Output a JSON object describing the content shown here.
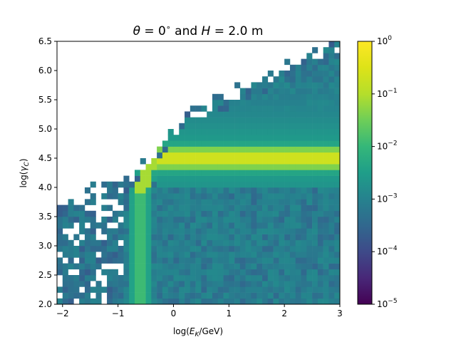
{
  "chart_data": {
    "type": "heatmap",
    "title": "θ = 0° and H = 2.0 m",
    "title_parts": {
      "theta": "θ",
      "eq1": " = 0",
      "deg": "∘",
      "and": " and ",
      "H": "H",
      "eq2": " = 2.0 m"
    },
    "xlabel": "log(E_K/GeV)",
    "xlabel_parts": {
      "pre": "log(",
      "E": "E",
      "sub": "K",
      "post": "/GeV)"
    },
    "ylabel": "log(γ_C)",
    "ylabel_parts": {
      "pre": "log(",
      "g": "γ",
      "sub": "C",
      "post": ")"
    },
    "xlim": [
      -2.1,
      3.0
    ],
    "ylim": [
      2.0,
      6.5
    ],
    "x_ticks": [
      -2,
      -1,
      0,
      1,
      2,
      3
    ],
    "x_tick_labels": [
      "−2",
      "−1",
      "0",
      "1",
      "2",
      "3"
    ],
    "y_ticks": [
      2.0,
      2.5,
      3.0,
      3.5,
      4.0,
      4.5,
      5.0,
      5.5,
      6.0,
      6.5
    ],
    "y_tick_labels": [
      "2.0",
      "2.5",
      "3.0",
      "3.5",
      "4.0",
      "4.5",
      "5.0",
      "5.5",
      "6.0",
      "6.5"
    ],
    "bins": {
      "nx": 51,
      "ny": 45
    },
    "colormap": "viridis",
    "color_scale": "log",
    "color_range": [
      1e-05,
      1
    ],
    "colorbar": {
      "ticks": [
        1e-05,
        0.0001,
        0.001,
        0.01,
        0.1,
        1
      ],
      "labels": [
        {
          "base": "10",
          "exp": "−5"
        },
        {
          "base": "10",
          "exp": "−4"
        },
        {
          "base": "10",
          "exp": "−3"
        },
        {
          "base": "10",
          "exp": "−2"
        },
        {
          "base": "10",
          "exp": "−1"
        },
        {
          "base": "10",
          "exp": "0"
        }
      ]
    },
    "features": {
      "vertical_band_x": -0.6,
      "plateau_y": 4.5,
      "plateau_start_x": -0.3,
      "plateau_peak": 0.25,
      "background_level": 0.0008
    }
  }
}
